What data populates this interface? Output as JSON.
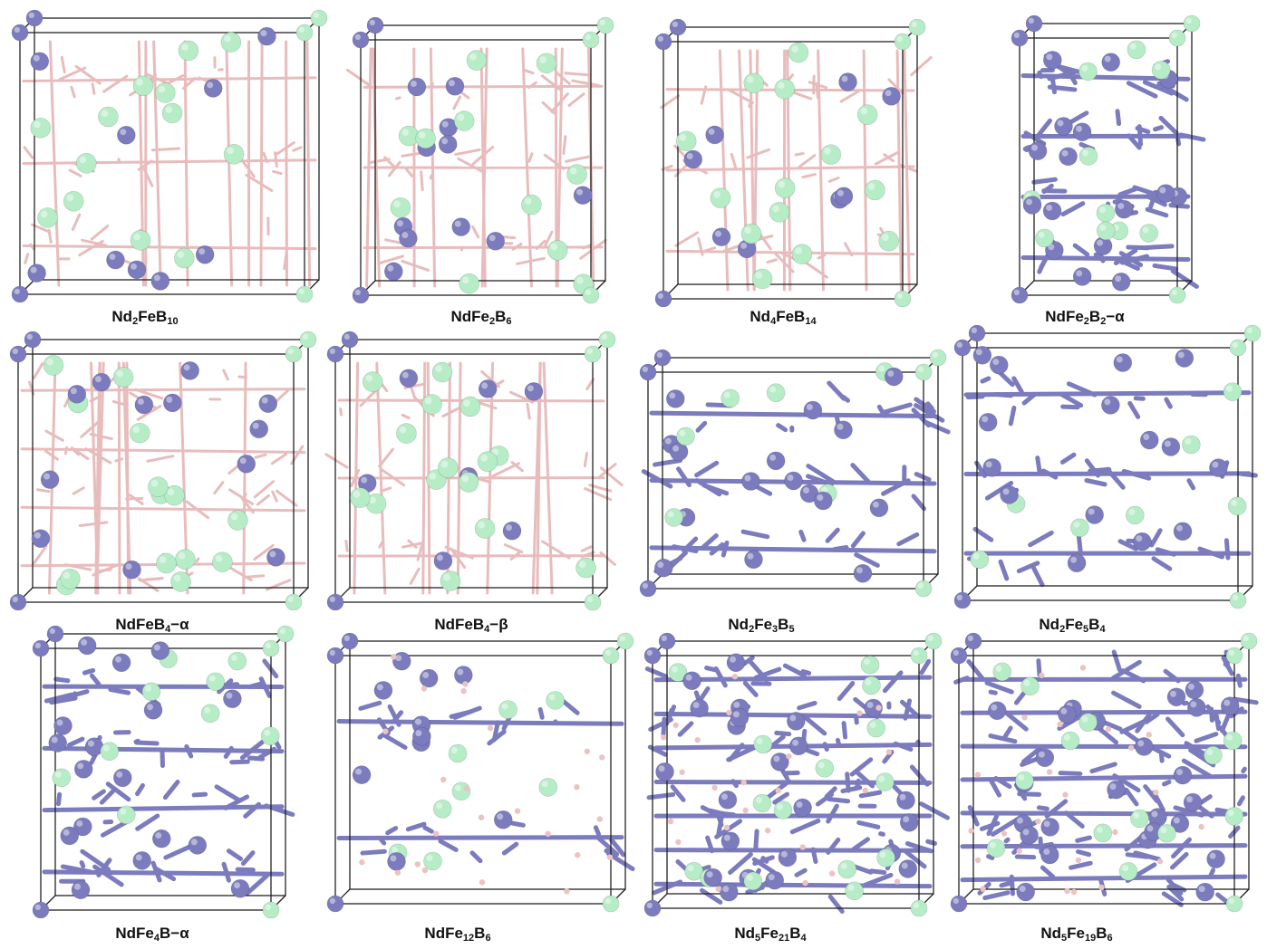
{
  "colors": {
    "nd_atom": "#b6ecc6",
    "fe_atom": "#7b7bbd",
    "b_bond": "#e8bcbc",
    "cell_line": "#222222",
    "background": "#ffffff"
  },
  "panels": [
    {
      "id": "nd2feb10",
      "formula": [
        {
          "t": "Nd"
        },
        {
          "s": "2"
        },
        {
          "t": "FeB"
        },
        {
          "s": "10"
        }
      ],
      "style": "boride-cage",
      "layers": 3
    },
    {
      "id": "ndfe2b6",
      "formula": [
        {
          "t": "NdFe"
        },
        {
          "s": "2"
        },
        {
          "t": "B"
        },
        {
          "s": "6"
        }
      ],
      "style": "boride-cage",
      "layers": 3
    },
    {
      "id": "nd4feb14",
      "formula": [
        {
          "t": "Nd"
        },
        {
          "s": "4"
        },
        {
          "t": "FeB"
        },
        {
          "s": "14"
        }
      ],
      "style": "boride-layers",
      "layers": 3
    },
    {
      "id": "ndfe2b2-alpha",
      "formula": [
        {
          "t": "NdFe"
        },
        {
          "s": "2"
        },
        {
          "t": "B"
        },
        {
          "s": "2"
        },
        {
          "t": "−α"
        }
      ],
      "style": "fe-sheets",
      "layers": 4
    },
    {
      "id": "ndfeb4-alpha",
      "formula": [
        {
          "t": "NdFeB"
        },
        {
          "s": "4"
        },
        {
          "t": "−α"
        }
      ],
      "style": "boride-cage",
      "layers": 4
    },
    {
      "id": "ndfeb4-beta",
      "formula": [
        {
          "t": "NdFeB"
        },
        {
          "s": "4"
        },
        {
          "t": "−β"
        }
      ],
      "style": "boride-rings",
      "layers": 3
    },
    {
      "id": "nd2fe3b5",
      "formula": [
        {
          "t": "Nd"
        },
        {
          "s": "2"
        },
        {
          "t": "Fe"
        },
        {
          "s": "3"
        },
        {
          "t": "B"
        },
        {
          "s": "5"
        }
      ],
      "style": "fe-sheets",
      "layers": 3
    },
    {
      "id": "nd2fe5b4",
      "formula": [
        {
          "t": "Nd"
        },
        {
          "s": "2"
        },
        {
          "t": "Fe"
        },
        {
          "s": "5"
        },
        {
          "t": "B"
        },
        {
          "s": "4"
        }
      ],
      "style": "fe-lattice",
      "layers": 3
    },
    {
      "id": "ndfe4b-alpha",
      "formula": [
        {
          "t": "NdFe"
        },
        {
          "s": "4"
        },
        {
          "t": "B−α"
        }
      ],
      "style": "fe-framework",
      "layers": 4
    },
    {
      "id": "ndfe12b6",
      "formula": [
        {
          "t": "NdFe"
        },
        {
          "s": "12"
        },
        {
          "t": "B"
        },
        {
          "s": "6"
        }
      ],
      "style": "fe-clusters",
      "layers": 2
    },
    {
      "id": "nd5fe21b4",
      "formula": [
        {
          "t": "Nd"
        },
        {
          "s": "5"
        },
        {
          "t": "Fe"
        },
        {
          "s": "21"
        },
        {
          "t": "B"
        },
        {
          "s": "4"
        }
      ],
      "style": "fe-dense",
      "layers": 7
    },
    {
      "id": "nd5fe19b6",
      "formula": [
        {
          "t": "Nd"
        },
        {
          "s": "5"
        },
        {
          "t": "Fe"
        },
        {
          "s": "19"
        },
        {
          "t": "B"
        },
        {
          "s": "6"
        }
      ],
      "style": "fe-dense",
      "layers": 7
    }
  ]
}
